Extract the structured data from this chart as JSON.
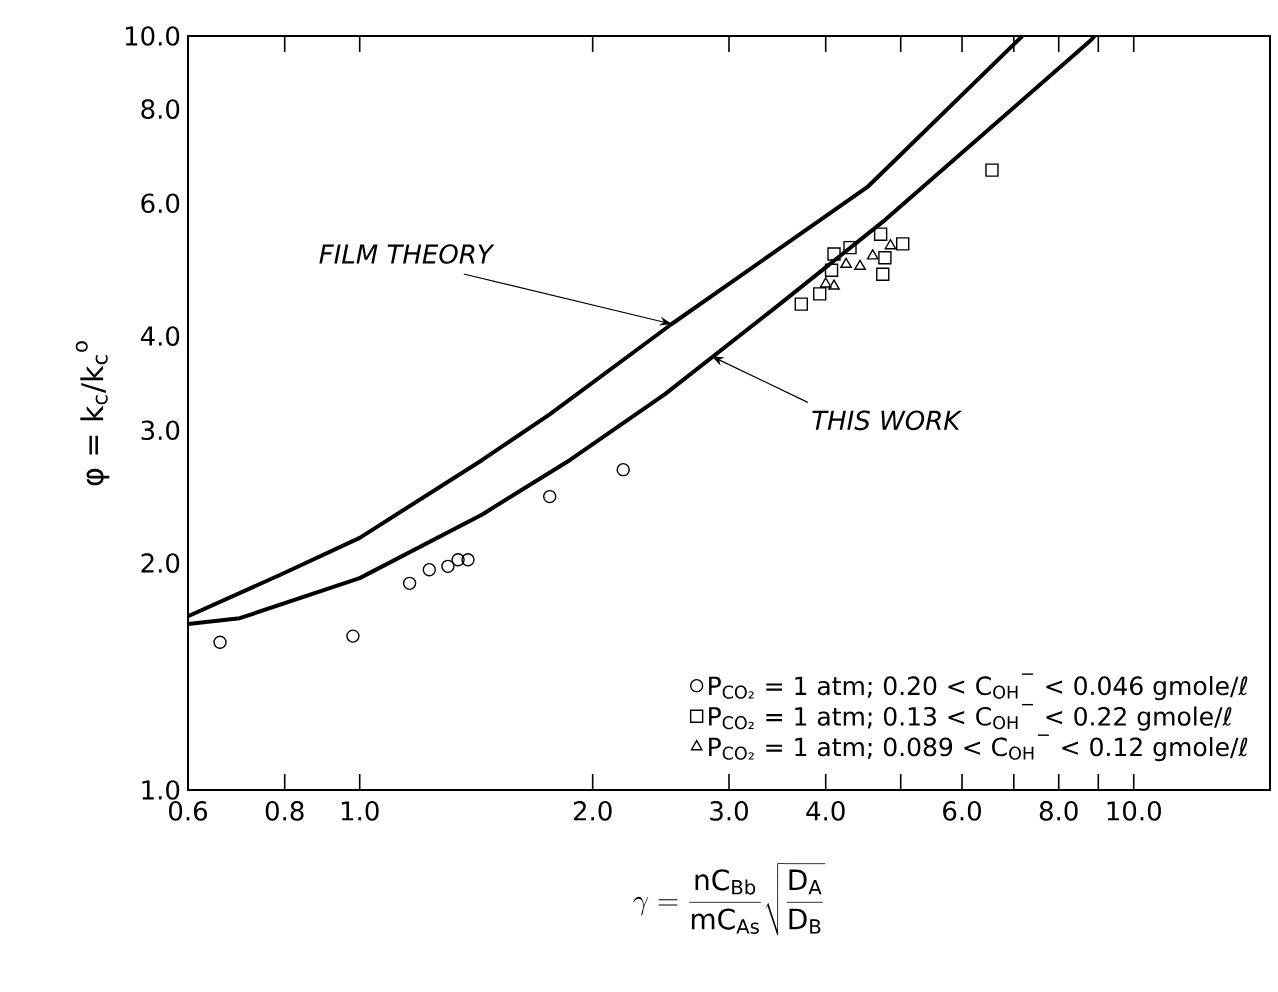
{
  "chart_data": {
    "type": "scatter",
    "xlabel": "\\gamma = \\frac{\\mathrm{nC_{Bb}}}{\\mathrm{mC_{As}}}\\sqrt{\\frac{\\mathrm{D_A}}{\\mathrm{D_B}}}",
    "ylabel": "φ = k$_{c}$/k$_{c}$$^{o}$",
    "log": "xy",
    "grid": false,
    "legend": "bottom right",
    "xlim": [
      0.6,
      15
    ],
    "ylim": [
      1,
      10
    ],
    "xticks": [
      {
        "value": 0.6,
        "label": "0.6"
      },
      {
        "value": 0.8,
        "label": "0.8"
      },
      {
        "value": 1,
        "label": "1.0"
      },
      {
        "value": 2,
        "label": "2.0"
      },
      {
        "value": 3,
        "label": "3.0"
      },
      {
        "value": 4,
        "label": "4.0"
      },
      {
        "value": 5,
        "label": null
      },
      {
        "value": 6,
        "label": "6.0"
      },
      {
        "value": 7,
        "label": null
      },
      {
        "value": 8,
        "label": "8.0"
      },
      {
        "value": 9,
        "label": null
      },
      {
        "value": 10,
        "label": "10.0"
      }
    ],
    "yticks": [
      {
        "value": 1,
        "label": "1.0"
      },
      {
        "value": 2,
        "label": "2.0"
      },
      {
        "value": 3,
        "label": "3.0"
      },
      {
        "value": 4,
        "label": "4.0"
      },
      {
        "value": 6,
        "label": "6.0"
      },
      {
        "value": 8,
        "label": "8.0"
      },
      {
        "value": 10,
        "label": "10.0"
      }
    ],
    "series": [
      {
        "name": "P$_{CO₂}$ = 1 atm; 0.20 < C$_{OH}$$^{−}$ < 0.046 gmole/ℓ",
        "color": "#000000",
        "marker": "circle",
        "x": [
          0.66,
          0.98,
          1.16,
          1.23,
          1.3,
          1.34,
          1.38,
          1.76,
          2.19
        ],
        "values": [
          1.57,
          1.6,
          1.88,
          1.96,
          1.98,
          2.02,
          2.02,
          2.45,
          2.66
        ]
      },
      {
        "name": "P$_{CO₂}$ = 1 atm; 0.13 < C$_{OH}$$^{−}$ < 0.22 gmole/ℓ",
        "color": "#000000",
        "marker": "square",
        "x": [
          6.56,
          3.72,
          3.93,
          4.07,
          4.1,
          4.3,
          4.71,
          5.03,
          4.77,
          4.74
        ],
        "values": [
          6.64,
          4.41,
          4.55,
          4.89,
          5.14,
          5.24,
          5.46,
          5.3,
          5.08,
          4.83
        ]
      },
      {
        "name": "P$_{CO₂}$ = 1 atm; 0.089 < C$_{OH}$$^{−}$ < 0.12 gmole/ℓ",
        "color": "#000000",
        "marker": "triangle",
        "x": [
          4.0,
          4.25,
          4.43,
          4.6,
          4.85,
          4.1
        ],
        "values": [
          4.69,
          4.98,
          4.95,
          5.11,
          5.27,
          4.66
        ]
      },
      {
        "type": "line",
        "color": "#000000",
        "marker": "none",
        "line_style": "solid",
        "x": [
          0.6,
          0.79,
          1.0,
          1.44,
          1.76,
          2.53,
          4.54,
          7.18
        ],
        "values": [
          1.7,
          1.93,
          2.16,
          2.74,
          3.15,
          4.15,
          6.32,
          10.0
        ]
      },
      {
        "type": "line",
        "color": "#000000",
        "marker": "none",
        "line_style": "solid",
        "x": [
          0.6,
          0.7,
          1.0,
          1.44,
          1.87,
          2.48,
          3.46,
          4.77,
          8.81,
          8.9
        ],
        "values": [
          1.66,
          1.69,
          1.91,
          2.32,
          2.74,
          3.35,
          4.38,
          5.7,
          9.88,
          10.0
        ]
      }
    ],
    "annotations": [
      {
        "text": "FILM THEORY",
        "x": 2.53,
        "y": 4.15
      },
      {
        "text": "THIS WORK",
        "x": 2.85,
        "y": 3.76
      }
    ]
  }
}
